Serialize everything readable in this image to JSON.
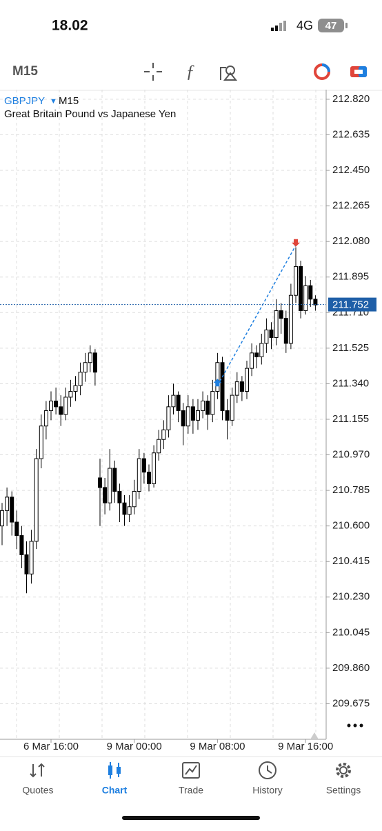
{
  "status_bar": {
    "time": "18.02",
    "network": "4G",
    "battery": "47"
  },
  "toolbar": {
    "timeframe": "M15"
  },
  "chart_data": {
    "type": "candlestick",
    "symbol": "GBPJPY",
    "timeframe": "M15",
    "subtitle": "Great Britain Pound vs Japanese Yen",
    "up_color": "#ffffff",
    "down_color": "#000000",
    "grid": true,
    "candles": [
      [
        210.6,
        210.72,
        210.5,
        210.68
      ],
      [
        210.68,
        210.8,
        210.6,
        210.75
      ],
      [
        210.75,
        210.78,
        210.55,
        210.62
      ],
      [
        210.62,
        210.68,
        210.48,
        210.55
      ],
      [
        210.55,
        210.6,
        210.38,
        210.45
      ],
      [
        210.45,
        210.52,
        210.25,
        210.35
      ],
      [
        210.35,
        210.58,
        210.3,
        210.52
      ],
      [
        210.52,
        211.0,
        210.48,
        210.95
      ],
      [
        210.95,
        211.18,
        210.9,
        211.12
      ],
      [
        211.12,
        211.25,
        211.05,
        211.2
      ],
      [
        211.2,
        211.3,
        211.15,
        211.25
      ],
      [
        211.25,
        211.32,
        211.18,
        211.22
      ],
      [
        211.22,
        211.28,
        211.12,
        211.18
      ],
      [
        211.18,
        211.32,
        211.15,
        211.27
      ],
      [
        211.27,
        211.36,
        211.22,
        211.3
      ],
      [
        211.3,
        211.38,
        211.25,
        211.33
      ],
      [
        211.33,
        211.45,
        211.28,
        211.4
      ],
      [
        211.4,
        211.5,
        211.35,
        211.45
      ],
      [
        211.45,
        211.54,
        211.4,
        211.5
      ],
      [
        211.5,
        211.52,
        211.33,
        211.4
      ],
      [
        210.85,
        210.95,
        210.6,
        210.8
      ],
      [
        210.8,
        210.85,
        210.66,
        210.72
      ],
      [
        210.72,
        211.0,
        210.68,
        210.9
      ],
      [
        210.9,
        210.94,
        210.72,
        210.78
      ],
      [
        210.78,
        210.82,
        210.62,
        210.72
      ],
      [
        210.72,
        210.76,
        210.6,
        210.66
      ],
      [
        210.66,
        210.76,
        210.62,
        210.7
      ],
      [
        210.7,
        210.84,
        210.66,
        210.78
      ],
      [
        210.78,
        211.0,
        210.74,
        210.95
      ],
      [
        210.95,
        210.98,
        210.82,
        210.88
      ],
      [
        210.88,
        210.92,
        210.78,
        210.82
      ],
      [
        210.82,
        211.02,
        210.8,
        210.98
      ],
      [
        210.98,
        211.1,
        210.94,
        211.05
      ],
      [
        211.05,
        211.15,
        211.0,
        211.1
      ],
      [
        211.1,
        211.28,
        211.06,
        211.22
      ],
      [
        211.22,
        211.34,
        211.18,
        211.28
      ],
      [
        211.28,
        211.3,
        211.14,
        211.2
      ],
      [
        211.2,
        211.24,
        211.02,
        211.12
      ],
      [
        211.12,
        211.28,
        211.08,
        211.22
      ],
      [
        211.22,
        211.26,
        211.08,
        211.15
      ],
      [
        211.15,
        211.26,
        211.1,
        211.2
      ],
      [
        211.2,
        211.3,
        211.16,
        211.25
      ],
      [
        211.25,
        211.28,
        211.1,
        211.18
      ],
      [
        211.18,
        211.36,
        211.14,
        211.3
      ],
      [
        211.3,
        211.5,
        211.26,
        211.45
      ],
      [
        211.45,
        211.48,
        211.15,
        211.2
      ],
      [
        211.2,
        211.26,
        211.05,
        211.15
      ],
      [
        211.15,
        211.32,
        211.12,
        211.28
      ],
      [
        211.28,
        211.4,
        211.24,
        211.35
      ],
      [
        211.35,
        211.38,
        211.25,
        211.3
      ],
      [
        211.3,
        211.46,
        211.26,
        211.42
      ],
      [
        211.42,
        211.55,
        211.38,
        211.5
      ],
      [
        211.5,
        211.54,
        211.42,
        211.48
      ],
      [
        211.48,
        211.6,
        211.44,
        211.55
      ],
      [
        211.55,
        211.68,
        211.5,
        211.62
      ],
      [
        211.62,
        211.66,
        211.52,
        211.58
      ],
      [
        211.58,
        211.78,
        211.54,
        211.72
      ],
      [
        211.72,
        211.76,
        211.6,
        211.68
      ],
      [
        211.68,
        211.72,
        211.5,
        211.55
      ],
      [
        211.55,
        211.86,
        211.52,
        211.8
      ],
      [
        211.8,
        212.05,
        211.76,
        211.95
      ],
      [
        211.95,
        211.98,
        211.68,
        211.72
      ],
      [
        211.72,
        211.9,
        211.7,
        211.85
      ],
      [
        211.85,
        211.88,
        211.74,
        211.78
      ],
      [
        211.78,
        211.8,
        211.72,
        211.75
      ]
    ],
    "ylim": [
      209.49,
      212.87
    ],
    "yticks": [
      {
        "value": 212.82,
        "label": "212.820"
      },
      212.635,
      {
        "value": 212.45,
        "label": "212.450"
      },
      212.265,
      {
        "value": 212.08,
        "label": "212.080"
      },
      211.895,
      {
        "value": 211.71,
        "label": "211.710"
      },
      211.525,
      {
        "value": 211.34,
        "label": "211.340"
      },
      211.155,
      {
        "value": 210.97,
        "label": "210.970"
      },
      210.785,
      {
        "value": 210.6,
        "label": "210.600"
      },
      210.415,
      {
        "value": 210.23,
        "label": "210.230"
      },
      210.045,
      {
        "value": 209.86,
        "label": "209.860"
      },
      209.675
    ],
    "xticks": [
      {
        "value": 10,
        "label": "6 Mar 16:00"
      },
      {
        "value": 27,
        "label": "9 Mar 00:00"
      },
      {
        "value": 44,
        "label": "9 Mar 08:00"
      },
      {
        "value": 62,
        "label": "9 Mar 16:00"
      }
    ],
    "current_price": 211.752,
    "current_price_color": "#1f5fa8",
    "buy_marker": {
      "index": 44,
      "price": 211.33,
      "color": "#1e7fe0"
    },
    "sell_marker": {
      "index": 60,
      "price": 212.06,
      "color": "#e0453a"
    }
  },
  "tabs": [
    "Quotes",
    "Chart",
    "Trade",
    "History",
    "Settings"
  ],
  "active_tab": 1
}
